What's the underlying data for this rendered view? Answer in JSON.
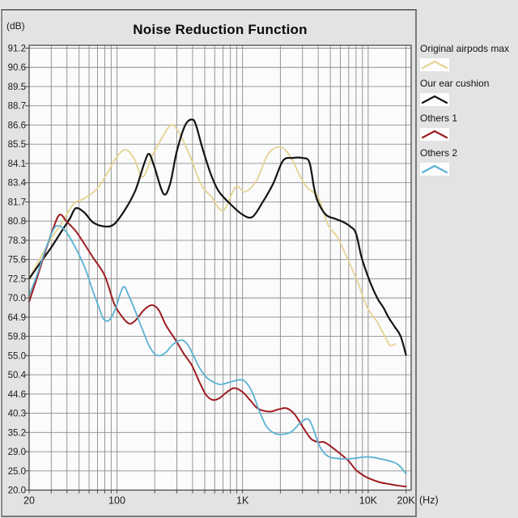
{
  "panel": {
    "background": "#e3e3e3",
    "plot_background": "#fbfbfb",
    "grid_color": "#8c8c8c",
    "axis_color": "#4a4a4a"
  },
  "chart_data": {
    "type": "line",
    "title": "Noise Reduction Function",
    "y_unit_label": "(dB)",
    "x_unit_label": "(Hz)",
    "x_scale": "log",
    "x_range_hz": [
      20,
      20000
    ],
    "grid": true,
    "legend_position": "right",
    "x_tick_labels": [
      {
        "hz": 20,
        "label": "20"
      },
      {
        "hz": 100,
        "label": "100"
      },
      {
        "hz": 1000,
        "label": "1K"
      },
      {
        "hz": 10000,
        "label": "10K"
      },
      {
        "hz": 20000,
        "label": "20K"
      }
    ],
    "y_tick_labels": [
      "91.2",
      "90.6",
      "89.5",
      "88.7",
      "86.6",
      "85.5",
      "84.1",
      "83.4",
      "81.7",
      "80.8",
      "78.3",
      "75.6",
      "72.5",
      "70.0",
      "64.9",
      "59.8",
      "55.0",
      "50.4",
      "44.6",
      "40.3",
      "35.2",
      "29.0",
      "25.0",
      "20.0"
    ],
    "series": [
      {
        "name": "Original airpods max",
        "slug": "original-airpods-max",
        "color": "#e5d391",
        "points": [
          [
            20,
            72.5
          ],
          [
            24,
            75.5
          ],
          [
            30,
            78.6
          ],
          [
            36,
            80.4
          ],
          [
            45,
            81.6
          ],
          [
            55,
            82.0
          ],
          [
            70,
            82.9
          ],
          [
            85,
            83.8
          ],
          [
            100,
            84.6
          ],
          [
            118,
            85.1
          ],
          [
            138,
            84.4
          ],
          [
            160,
            83.6
          ],
          [
            190,
            84.6
          ],
          [
            230,
            85.9
          ],
          [
            270,
            86.6
          ],
          [
            310,
            86.2
          ],
          [
            380,
            84.7
          ],
          [
            470,
            83.2
          ],
          [
            560,
            82.2
          ],
          [
            700,
            81.3
          ],
          [
            880,
            83.0
          ],
          [
            1050,
            82.6
          ],
          [
            1300,
            83.5
          ],
          [
            1600,
            84.8
          ],
          [
            2000,
            85.3
          ],
          [
            2400,
            84.6
          ],
          [
            2900,
            83.6
          ],
          [
            3300,
            82.9
          ],
          [
            4000,
            82.1
          ],
          [
            4800,
            80.3
          ],
          [
            5700,
            78.7
          ],
          [
            6800,
            75.8
          ],
          [
            8200,
            72.2
          ],
          [
            9800,
            67.6
          ],
          [
            11700,
            63.8
          ],
          [
            13500,
            60.0
          ],
          [
            14900,
            57.6
          ],
          [
            16500,
            57.9
          ]
        ]
      },
      {
        "name": "Our ear cushion",
        "slug": "our-ear-cushion",
        "color": "#141414",
        "points": [
          [
            20,
            72.5
          ],
          [
            25,
            75.3
          ],
          [
            30,
            77.3
          ],
          [
            36,
            79.4
          ],
          [
            42,
            80.9
          ],
          [
            47,
            81.4
          ],
          [
            55,
            81.2
          ],
          [
            65,
            80.6
          ],
          [
            80,
            80.1
          ],
          [
            95,
            80.4
          ],
          [
            115,
            81.3
          ],
          [
            140,
            82.7
          ],
          [
            165,
            84.1
          ],
          [
            180,
            84.8
          ],
          [
            198,
            84.0
          ],
          [
            235,
            82.4
          ],
          [
            265,
            83.3
          ],
          [
            300,
            85.0
          ],
          [
            350,
            86.6
          ],
          [
            400,
            87.2
          ],
          [
            430,
            86.5
          ],
          [
            480,
            85.2
          ],
          [
            560,
            83.7
          ],
          [
            650,
            82.6
          ],
          [
            800,
            81.6
          ],
          [
            1000,
            81.1
          ],
          [
            1200,
            81.0
          ],
          [
            1450,
            81.7
          ],
          [
            1750,
            83.3
          ],
          [
            2100,
            84.3
          ],
          [
            2500,
            84.5
          ],
          [
            3000,
            84.5
          ],
          [
            3400,
            84.2
          ],
          [
            3700,
            83.0
          ],
          [
            3950,
            81.8
          ],
          [
            4600,
            81.1
          ],
          [
            5500,
            80.9
          ],
          [
            6300,
            80.7
          ],
          [
            7200,
            80.1
          ],
          [
            8000,
            79.2
          ],
          [
            8900,
            75.8
          ],
          [
            10400,
            72.0
          ],
          [
            11900,
            69.8
          ],
          [
            13200,
            67.5
          ],
          [
            14500,
            64.9
          ],
          [
            16300,
            62.3
          ],
          [
            18100,
            59.9
          ],
          [
            20000,
            55.2
          ]
        ]
      },
      {
        "name": "Others 1",
        "slug": "others-1",
        "color": "#9f1c22",
        "points": [
          [
            20,
            69.0
          ],
          [
            23,
            72.5
          ],
          [
            27,
            76.8
          ],
          [
            31,
            79.8
          ],
          [
            35,
            81.1
          ],
          [
            40,
            80.7
          ],
          [
            47,
            79.5
          ],
          [
            55,
            77.8
          ],
          [
            65,
            75.8
          ],
          [
            80,
            73.0
          ],
          [
            95,
            68.5
          ],
          [
            110,
            65.0
          ],
          [
            125,
            63.2
          ],
          [
            140,
            64.0
          ],
          [
            165,
            66.9
          ],
          [
            190,
            68.1
          ],
          [
            215,
            66.8
          ],
          [
            245,
            62.8
          ],
          [
            293,
            58.9
          ],
          [
            340,
            55.5
          ],
          [
            396,
            52.6
          ],
          [
            450,
            48.5
          ],
          [
            510,
            44.5
          ],
          [
            575,
            43.3
          ],
          [
            650,
            43.6
          ],
          [
            750,
            45.2
          ],
          [
            860,
            46.4
          ],
          [
            1000,
            45.2
          ],
          [
            1150,
            43.2
          ],
          [
            1300,
            41.5
          ],
          [
            1500,
            40.8
          ],
          [
            1700,
            40.7
          ],
          [
            1950,
            41.2
          ],
          [
            2250,
            41.4
          ],
          [
            2600,
            40.0
          ],
          [
            3000,
            36.8
          ],
          [
            3500,
            33.2
          ],
          [
            4000,
            32.1
          ],
          [
            4500,
            32.0
          ],
          [
            5400,
            29.8
          ],
          [
            6900,
            27.2
          ],
          [
            8000,
            25.2
          ],
          [
            9500,
            23.5
          ],
          [
            10800,
            22.7
          ],
          [
            12500,
            22.0
          ],
          [
            14500,
            21.6
          ],
          [
            17000,
            21.2
          ],
          [
            20000,
            20.9
          ]
        ]
      },
      {
        "name": "Others 2",
        "slug": "others-2",
        "color": "#5ab2d4",
        "points": [
          [
            20,
            70.3
          ],
          [
            23,
            73.0
          ],
          [
            27,
            77.0
          ],
          [
            31,
            79.6
          ],
          [
            34,
            80.2
          ],
          [
            39,
            79.5
          ],
          [
            46,
            77.5
          ],
          [
            55,
            74.5
          ],
          [
            64,
            71.0
          ],
          [
            72,
            67.5
          ],
          [
            78,
            64.5
          ],
          [
            86,
            64.0
          ],
          [
            97,
            67.0
          ],
          [
            112,
            71.4
          ],
          [
            125,
            70.2
          ],
          [
            140,
            66.5
          ],
          [
            160,
            61.5
          ],
          [
            180,
            57.5
          ],
          [
            200,
            55.4
          ],
          [
            220,
            55.0
          ],
          [
            245,
            55.8
          ],
          [
            275,
            57.6
          ],
          [
            310,
            58.7
          ],
          [
            335,
            58.8
          ],
          [
            365,
            57.8
          ],
          [
            400,
            55.5
          ],
          [
            450,
            52.3
          ],
          [
            510,
            49.8
          ],
          [
            580,
            48.3
          ],
          [
            660,
            47.5
          ],
          [
            780,
            48.1
          ],
          [
            950,
            48.9
          ],
          [
            1060,
            48.2
          ],
          [
            1200,
            45.0
          ],
          [
            1350,
            41.0
          ],
          [
            1550,
            36.8
          ],
          [
            1800,
            34.9
          ],
          [
            2100,
            34.6
          ],
          [
            2450,
            35.4
          ],
          [
            2900,
            37.8
          ],
          [
            3300,
            38.8
          ],
          [
            3600,
            36.8
          ],
          [
            4000,
            31.8
          ],
          [
            4400,
            28.9
          ],
          [
            4900,
            27.9
          ],
          [
            5600,
            27.6
          ],
          [
            6500,
            27.5
          ],
          [
            7800,
            27.6
          ],
          [
            9200,
            27.9
          ],
          [
            11000,
            27.8
          ],
          [
            13000,
            27.4
          ],
          [
            15500,
            26.9
          ],
          [
            17500,
            26.2
          ],
          [
            20000,
            24.3
          ]
        ]
      }
    ]
  }
}
